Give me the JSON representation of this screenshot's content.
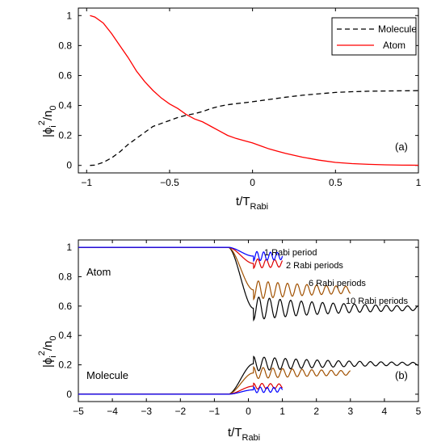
{
  "chart_data": [
    {
      "panel": "(a)",
      "type": "line",
      "xlim": [
        -1,
        1
      ],
      "ylim": [
        0,
        1
      ],
      "xticks": [
        "−1",
        "−0.5",
        "0",
        "0.5",
        "1"
      ],
      "yticks": [
        "0",
        "0.2",
        "0.4",
        "0.6",
        "0.8",
        "1"
      ],
      "xticks_values": [
        -1,
        -0.5,
        0,
        0.5,
        1
      ],
      "yticks_values": [
        0,
        0.2,
        0.4,
        0.6,
        0.8,
        1
      ],
      "xlabel": "t/T",
      "xlabel_sub": "Rabi",
      "ylabel": "|ϕ",
      "ylabel_sub": "i",
      "ylabel_sup": "2",
      "ylabel_tail": "/n",
      "ylabel_tail_sub": "0",
      "legend_position": "top-right",
      "series": [
        {
          "name": "Molecule",
          "color": "#000000",
          "style": "dashed",
          "x": [
            -0.98,
            -0.95,
            -0.9,
            -0.85,
            -0.8,
            -0.75,
            -0.7,
            -0.65,
            -0.6,
            -0.55,
            -0.5,
            -0.45,
            -0.4,
            -0.35,
            -0.3,
            -0.25,
            -0.2,
            -0.15,
            -0.1,
            -0.05,
            0.0,
            0.1,
            0.2,
            0.3,
            0.4,
            0.5,
            0.6,
            0.7,
            0.8,
            0.9,
            1.0
          ],
          "y": [
            0.0,
            0.002,
            0.02,
            0.05,
            0.09,
            0.14,
            0.18,
            0.22,
            0.26,
            0.28,
            0.3,
            0.32,
            0.335,
            0.345,
            0.36,
            0.38,
            0.395,
            0.405,
            0.412,
            0.418,
            0.425,
            0.44,
            0.455,
            0.468,
            0.478,
            0.487,
            0.492,
            0.495,
            0.497,
            0.498,
            0.499
          ]
        },
        {
          "name": "Atom",
          "color": "#ff0000",
          "style": "solid",
          "x": [
            -0.98,
            -0.95,
            -0.9,
            -0.85,
            -0.8,
            -0.75,
            -0.7,
            -0.65,
            -0.6,
            -0.55,
            -0.5,
            -0.45,
            -0.4,
            -0.35,
            -0.3,
            -0.25,
            -0.2,
            -0.15,
            -0.1,
            -0.05,
            0.0,
            0.05,
            0.1,
            0.15,
            0.2,
            0.3,
            0.4,
            0.5,
            0.6,
            0.7,
            0.8,
            0.9,
            1.0
          ],
          "y": [
            1.0,
            0.99,
            0.95,
            0.88,
            0.8,
            0.72,
            0.63,
            0.56,
            0.5,
            0.45,
            0.41,
            0.38,
            0.34,
            0.31,
            0.29,
            0.26,
            0.23,
            0.2,
            0.18,
            0.165,
            0.15,
            0.13,
            0.11,
            0.095,
            0.08,
            0.055,
            0.035,
            0.02,
            0.012,
            0.007,
            0.004,
            0.002,
            0.001
          ]
        }
      ]
    },
    {
      "panel": "(b)",
      "type": "line",
      "xlim": [
        -5,
        5
      ],
      "ylim": [
        -0.05,
        1.05
      ],
      "xticks": [
        "−5",
        "−4",
        "−3",
        "−2",
        "−1",
        "0",
        "1",
        "2",
        "3",
        "4",
        "5"
      ],
      "yticks": [
        "0",
        "0.2",
        "0.4",
        "0.6",
        "0.8",
        "1"
      ],
      "xticks_values": [
        -5,
        -4,
        -3,
        -2,
        -1,
        0,
        1,
        2,
        3,
        4,
        5
      ],
      "yticks_values": [
        0,
        0.2,
        0.4,
        0.6,
        0.8,
        1
      ],
      "xlabel": "t/T",
      "xlabel_sub": "Rabi",
      "ylabel": "|ϕ",
      "ylabel_sub": "i",
      "ylabel_sup": "2",
      "ylabel_tail": "/n",
      "ylabel_tail_sub": "0",
      "text_labels": {
        "atom": "Atom",
        "molecule": "Molecule",
        "p1": "1 Rabi period",
        "p2": "2 Rabi periods",
        "p6": "6 Rabi periods",
        "p10": "10 Rabi periods"
      },
      "series": [
        {
          "period": 1,
          "color": "#0000ff",
          "end": 1,
          "atom_final": 0.94,
          "mol_final": 0.03,
          "amp": 0.02,
          "freq": 5
        },
        {
          "period": 2,
          "color": "#e00000",
          "end": 1,
          "atom_final": 0.89,
          "mol_final": 0.055,
          "amp": 0.02,
          "freq": 4
        },
        {
          "period": 6,
          "color": "#a05000",
          "end": 3,
          "atom_final": 0.71,
          "mol_final": 0.145,
          "amp": 0.04,
          "freq": 3.5
        },
        {
          "period": 10,
          "color": "#000000",
          "end": 5,
          "atom_final": 0.585,
          "mol_final": 0.207,
          "amp": 0.05,
          "freq": 3.2
        }
      ]
    }
  ],
  "panel_a_label": "(a)",
  "panel_b_label": "(b)"
}
